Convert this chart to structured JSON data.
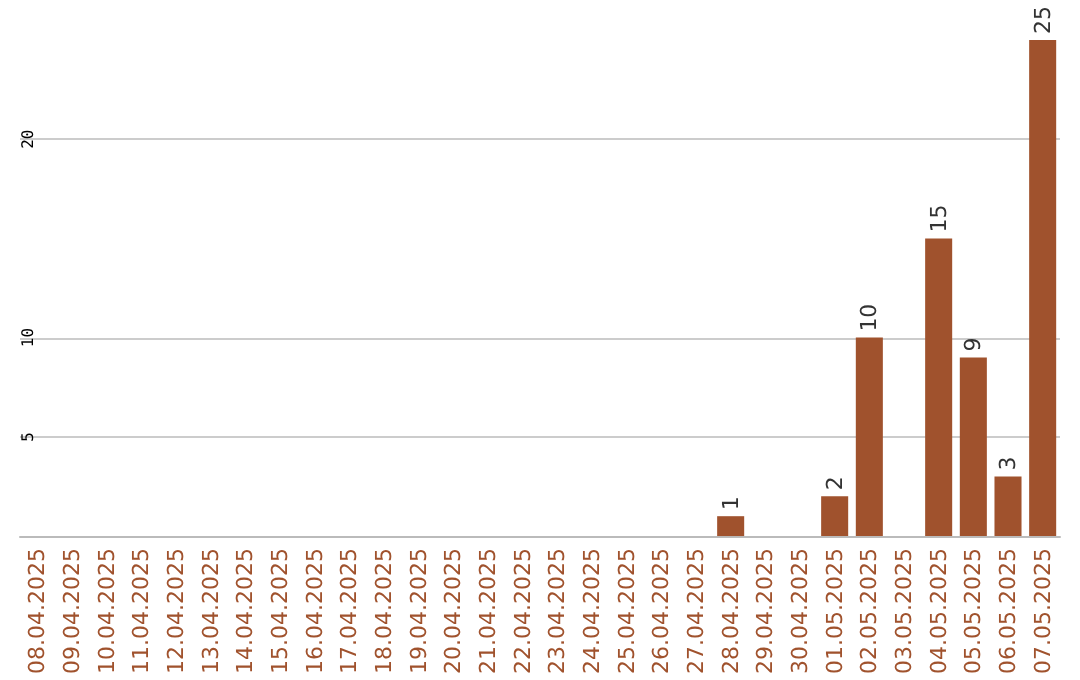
{
  "chart_data": {
    "type": "bar",
    "categories": [
      "08.04.2025",
      "09.04.2025",
      "10.04.2025",
      "11.04.2025",
      "12.04.2025",
      "13.04.2025",
      "14.04.2025",
      "15.04.2025",
      "16.04.2025",
      "17.04.2025",
      "18.04.2025",
      "19.04.2025",
      "20.04.2025",
      "21.04.2025",
      "22.04.2025",
      "23.04.2025",
      "24.04.2025",
      "25.04.2025",
      "26.04.2025",
      "27.04.2025",
      "28.04.2025",
      "29.04.2025",
      "30.04.2025",
      "01.05.2025",
      "02.05.2025",
      "03.05.2025",
      "04.05.2025",
      "05.05.2025",
      "06.05.2025",
      "07.05.2025"
    ],
    "values": [
      0,
      0,
      0,
      0,
      0,
      0,
      0,
      0,
      0,
      0,
      0,
      0,
      0,
      0,
      0,
      0,
      0,
      0,
      0,
      0,
      1,
      0,
      0,
      2,
      10,
      0,
      15,
      9,
      3,
      25
    ],
    "value_labels": [
      null,
      null,
      null,
      null,
      null,
      null,
      null,
      null,
      null,
      null,
      null,
      null,
      null,
      null,
      null,
      null,
      null,
      null,
      null,
      null,
      "1",
      null,
      null,
      "2",
      "10",
      null,
      "15",
      "9",
      "3",
      "25"
    ],
    "color": "#a0522d",
    "ylim": [
      0,
      25
    ],
    "yticks": [
      5,
      10,
      20
    ],
    "grid": "y"
  }
}
